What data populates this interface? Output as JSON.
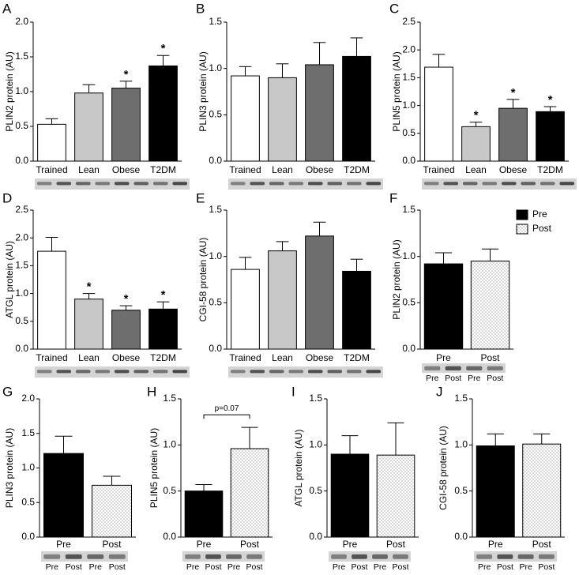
{
  "chart_data": [
    {
      "type": "bar",
      "label": "A",
      "y_label": "PLIN2 protein (AU)",
      "categories": [
        "Trained",
        "Lean",
        "Obese",
        "T2DM"
      ],
      "values": [
        0.53,
        0.98,
        1.05,
        1.37
      ],
      "errors": [
        0.08,
        0.12,
        0.1,
        0.15
      ],
      "colors": [
        "#ffffff",
        "#c8c8c8",
        "#6e6e6e",
        "#000000"
      ],
      "ylim": [
        0,
        2.0
      ],
      "yticks": [
        {
          "value": 0,
          "label": "0.0"
        },
        0.5,
        {
          "value": 1.0,
          "label": "1.0"
        },
        1.5,
        {
          "value": 2.0,
          "label": "2.0"
        }
      ],
      "annotations": [
        {
          "text": "*",
          "category": "Obese"
        },
        {
          "text": "*",
          "category": "T2DM"
        }
      ]
    },
    {
      "type": "bar",
      "label": "B",
      "y_label": "PLIN3 protein (AU)",
      "categories": [
        "Trained",
        "Lean",
        "Obese",
        "T2DM"
      ],
      "values": [
        0.92,
        0.9,
        1.04,
        1.13
      ],
      "errors": [
        0.1,
        0.15,
        0.24,
        0.2
      ],
      "colors": [
        "#ffffff",
        "#c8c8c8",
        "#6e6e6e",
        "#000000"
      ],
      "ylim": [
        0,
        1.5
      ],
      "yticks": [
        {
          "value": 0,
          "label": "0.0"
        },
        0.5,
        {
          "value": 1.0,
          "label": "1.0"
        },
        1.5
      ]
    },
    {
      "type": "bar",
      "label": "C",
      "y_label": "PLIN5 protein (AU)",
      "categories": [
        "Trained",
        "Lean",
        "Obese",
        "T2DM"
      ],
      "values": [
        1.69,
        0.62,
        0.95,
        0.89
      ],
      "errors": [
        0.23,
        0.08,
        0.16,
        0.09
      ],
      "colors": [
        "#ffffff",
        "#c8c8c8",
        "#6e6e6e",
        "#000000"
      ],
      "ylim": [
        0,
        2.5
      ],
      "yticks": [
        {
          "value": 0,
          "label": "0.0"
        },
        0.5,
        {
          "value": 1.0,
          "label": "1.0"
        },
        1.5,
        {
          "value": 2.0,
          "label": "2.0"
        },
        2.5
      ],
      "annotations": [
        {
          "text": "*",
          "category": "Lean"
        },
        {
          "text": "*",
          "category": "Obese"
        },
        {
          "text": "*",
          "category": "T2DM"
        }
      ]
    },
    {
      "type": "bar",
      "label": "D",
      "y_label": "ATGL protein (AU)",
      "categories": [
        "Trained",
        "Lean",
        "Obese",
        "T2DM"
      ],
      "values": [
        1.76,
        0.9,
        0.7,
        0.72
      ],
      "errors": [
        0.25,
        0.1,
        0.08,
        0.13
      ],
      "colors": [
        "#ffffff",
        "#c8c8c8",
        "#6e6e6e",
        "#000000"
      ],
      "ylim": [
        0,
        2.5
      ],
      "yticks": [
        {
          "value": 0,
          "label": "0.0"
        },
        0.5,
        {
          "value": 1.0,
          "label": "1.0"
        },
        1.5,
        {
          "value": 2.0,
          "label": "2.0"
        },
        2.5
      ],
      "annotations": [
        {
          "text": "*",
          "category": "Lean"
        },
        {
          "text": "*",
          "category": "Obese"
        },
        {
          "text": "*",
          "category": "T2DM"
        }
      ]
    },
    {
      "type": "bar",
      "label": "E",
      "y_label": "CGI-58 protein (AU)",
      "categories": [
        "Trained",
        "Lean",
        "Obese",
        "T2DM"
      ],
      "values": [
        0.86,
        1.06,
        1.22,
        0.84
      ],
      "errors": [
        0.13,
        0.1,
        0.15,
        0.13
      ],
      "colors": [
        "#ffffff",
        "#c8c8c8",
        "#6e6e6e",
        "#000000"
      ],
      "ylim": [
        0,
        1.5
      ],
      "yticks": [
        {
          "value": 0,
          "label": "0.0"
        },
        0.5,
        {
          "value": 1.0,
          "label": "1.0"
        },
        1.5
      ]
    },
    {
      "type": "bar",
      "label": "F",
      "y_label": "PLIN2 protein (AU)",
      "categories": [
        "Pre",
        "Post"
      ],
      "values": [
        0.92,
        0.95
      ],
      "errors": [
        0.12,
        0.13
      ],
      "colors": [
        "#000000",
        "#ffffff"
      ],
      "patterns": [
        null,
        "dots"
      ],
      "ylim": [
        0,
        1.5
      ],
      "yticks": [
        {
          "value": 0,
          "label": "0.0"
        },
        0.5,
        {
          "value": 1.0,
          "label": "1.0"
        },
        1.5
      ],
      "legend": [
        "Pre",
        "Post"
      ],
      "blot_labels": [
        "Pre",
        "Post",
        "Pre",
        "Post"
      ]
    },
    {
      "type": "bar",
      "label": "G",
      "y_label": "PLIN3 protein (AU)",
      "categories": [
        "Pre",
        "Post"
      ],
      "values": [
        1.21,
        0.75
      ],
      "errors": [
        0.25,
        0.13
      ],
      "colors": [
        "#000000",
        "#ffffff"
      ],
      "patterns": [
        null,
        "dots"
      ],
      "ylim": [
        0,
        2.0
      ],
      "yticks": [
        {
          "value": 0,
          "label": "0.0"
        },
        0.5,
        {
          "value": 1.0,
          "label": "1.0"
        },
        1.5,
        {
          "value": 2.0,
          "label": "2.0"
        }
      ],
      "blot_labels": [
        "Pre",
        "Post",
        "Pre",
        "Post"
      ]
    },
    {
      "type": "bar",
      "label": "H",
      "y_label": "PLIN5 protein (AU)",
      "categories": [
        "Pre",
        "Post"
      ],
      "values": [
        0.5,
        0.96
      ],
      "errors": [
        0.07,
        0.23
      ],
      "colors": [
        "#000000",
        "#ffffff"
      ],
      "patterns": [
        null,
        "dots"
      ],
      "ylim": [
        0,
        1.5
      ],
      "yticks": [
        {
          "value": 0,
          "label": "0.0"
        },
        0.5,
        {
          "value": 1.0,
          "label": "1.0"
        },
        1.5
      ],
      "brackets": [
        {
          "text": "p=0.07",
          "from": "Pre",
          "to": "Post"
        }
      ],
      "blot_labels": [
        "Pre",
        "Post",
        "Pre",
        "Post"
      ]
    },
    {
      "type": "bar",
      "label": "I",
      "y_label": "ATGL protein (AU)",
      "categories": [
        "Pre",
        "Post"
      ],
      "values": [
        0.9,
        0.89
      ],
      "errors": [
        0.2,
        0.35
      ],
      "colors": [
        "#000000",
        "#ffffff"
      ],
      "patterns": [
        null,
        "dots"
      ],
      "ylim": [
        0,
        1.5
      ],
      "yticks": [
        {
          "value": 0,
          "label": "0.0"
        },
        0.5,
        {
          "value": 1.0,
          "label": "1.0"
        },
        1.5
      ],
      "blot_labels": [
        "Pre",
        "Post",
        "Pre",
        "Post"
      ]
    },
    {
      "type": "bar",
      "label": "J",
      "y_label": "CGI-58 protein (AU)",
      "categories": [
        "Pre",
        "Post"
      ],
      "values": [
        0.99,
        1.01
      ],
      "errors": [
        0.13,
        0.11
      ],
      "colors": [
        "#000000",
        "#ffffff"
      ],
      "patterns": [
        null,
        "dots"
      ],
      "ylim": [
        0,
        1.5
      ],
      "yticks": [
        {
          "value": 0,
          "label": "0.0"
        },
        0.5,
        {
          "value": 1.0,
          "label": "1.0"
        },
        1.5
      ],
      "blot_labels": [
        "Pre",
        "Post",
        "Pre",
        "Post"
      ]
    }
  ]
}
